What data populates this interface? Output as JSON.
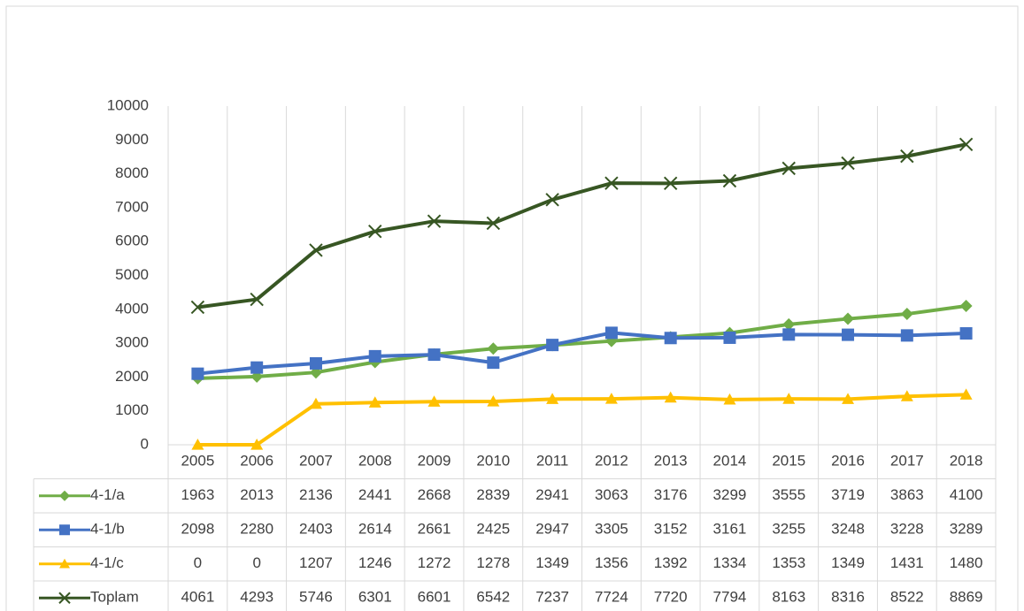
{
  "chart_data": {
    "type": "line",
    "categories": [
      "2005",
      "2006",
      "2007",
      "2008",
      "2009",
      "2010",
      "2011",
      "2012",
      "2013",
      "2014",
      "2015",
      "2016",
      "2017",
      "2018"
    ],
    "series": [
      {
        "name": "4-1/a",
        "color": "#70ad47",
        "marker": "diamond",
        "values": [
          1963,
          2013,
          2136,
          2441,
          2668,
          2839,
          2941,
          3063,
          3176,
          3299,
          3555,
          3719,
          3863,
          4100
        ]
      },
      {
        "name": "4-1/b",
        "color": "#4472c4",
        "marker": "square",
        "values": [
          2098,
          2280,
          2403,
          2614,
          2661,
          2425,
          2947,
          3305,
          3152,
          3161,
          3255,
          3248,
          3228,
          3289
        ]
      },
      {
        "name": "4-1/c",
        "color": "#ffc000",
        "marker": "triangle",
        "values": [
          0,
          0,
          1207,
          1246,
          1272,
          1278,
          1349,
          1356,
          1392,
          1334,
          1353,
          1349,
          1431,
          1480
        ]
      },
      {
        "name": "Toplam",
        "color": "#375623",
        "marker": "x",
        "values": [
          4061,
          4293,
          5746,
          6301,
          6601,
          6542,
          7237,
          7724,
          7720,
          7794,
          8163,
          8316,
          8522,
          8869
        ]
      }
    ],
    "ylim": [
      0,
      10000
    ],
    "yticks": [
      0,
      1000,
      2000,
      3000,
      4000,
      5000,
      6000,
      7000,
      8000,
      9000,
      10000
    ],
    "grid": false,
    "data_table": true
  }
}
